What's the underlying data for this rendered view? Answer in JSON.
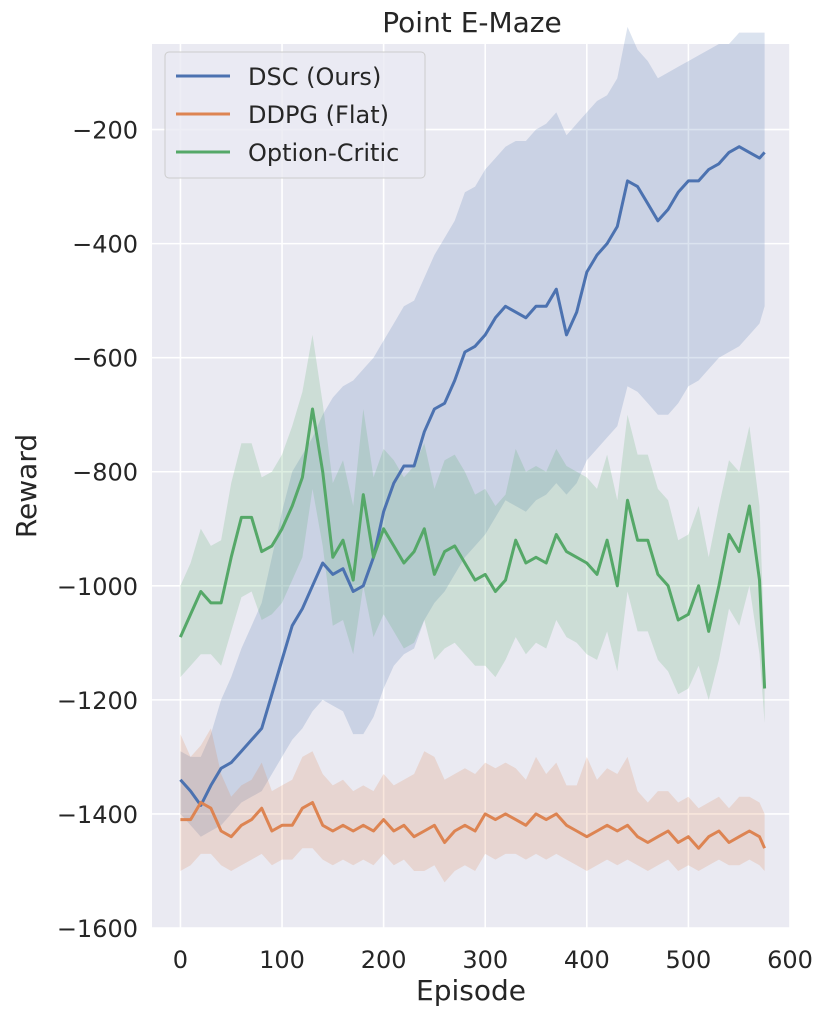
{
  "chart_data": {
    "type": "line",
    "title": "Point E-Maze",
    "xlabel": "Episode",
    "ylabel": "Reward",
    "xlim": [
      -28,
      600
    ],
    "ylim": [
      -1600,
      -50
    ],
    "xticks": [
      0,
      100,
      200,
      300,
      400,
      500,
      600
    ],
    "xtick_labels": [
      "0",
      "100",
      "200",
      "300",
      "400",
      "500",
      "600"
    ],
    "yticks": [
      -1600,
      -1400,
      -1200,
      -1000,
      -800,
      -600,
      -400,
      -200
    ],
    "ytick_labels": [
      "−1600",
      "−1400",
      "−1200",
      "−1000",
      "−800",
      "−600",
      "−400",
      "−200"
    ],
    "grid": true,
    "legend_position": "top-left",
    "background": "#eaeaf2",
    "series": [
      {
        "name": "DSC (Ours)",
        "color": "#4c72b0",
        "x": [
          0,
          10,
          20,
          30,
          40,
          50,
          60,
          70,
          80,
          90,
          100,
          110,
          120,
          130,
          140,
          150,
          160,
          170,
          180,
          190,
          200,
          210,
          220,
          230,
          240,
          250,
          260,
          270,
          280,
          290,
          300,
          310,
          320,
          330,
          340,
          350,
          360,
          370,
          380,
          390,
          400,
          410,
          420,
          430,
          440,
          450,
          460,
          470,
          480,
          490,
          500,
          510,
          520,
          530,
          540,
          550,
          560,
          570,
          575
        ],
        "mean": [
          -1340,
          -1360,
          -1385,
          -1350,
          -1320,
          -1310,
          -1290,
          -1270,
          -1250,
          -1190,
          -1130,
          -1070,
          -1040,
          -1000,
          -960,
          -980,
          -970,
          -1010,
          -1000,
          -950,
          -870,
          -820,
          -790,
          -790,
          -730,
          -690,
          -680,
          -640,
          -590,
          -580,
          -560,
          -530,
          -510,
          -520,
          -530,
          -510,
          -510,
          -480,
          -560,
          -520,
          -450,
          -420,
          -400,
          -370,
          -290,
          -300,
          -330,
          -360,
          -340,
          -310,
          -290,
          -290,
          -270,
          -260,
          -240,
          -230,
          -240,
          -250,
          -240
        ],
        "lower": [
          -1400,
          -1420,
          -1440,
          -1430,
          -1420,
          -1400,
          -1380,
          -1370,
          -1360,
          -1330,
          -1300,
          -1270,
          -1250,
          -1220,
          -1200,
          -1210,
          -1220,
          -1260,
          -1260,
          -1230,
          -1180,
          -1140,
          -1120,
          -1110,
          -1060,
          -1030,
          -1010,
          -980,
          -950,
          -930,
          -910,
          -880,
          -850,
          -860,
          -870,
          -850,
          -840,
          -820,
          -840,
          -820,
          -780,
          -760,
          -740,
          -720,
          -650,
          -660,
          -680,
          -700,
          -700,
          -680,
          -650,
          -640,
          -620,
          -600,
          -590,
          -580,
          -560,
          -540,
          -510
        ],
        "upper": [
          -1290,
          -1300,
          -1300,
          -1260,
          -1200,
          -1160,
          -1110,
          -1070,
          -1030,
          -950,
          -870,
          -800,
          -770,
          -740,
          -700,
          -670,
          -650,
          -640,
          -620,
          -600,
          -570,
          -540,
          -510,
          -500,
          -460,
          -420,
          -390,
          -360,
          -310,
          -300,
          -270,
          -250,
          -230,
          -220,
          -220,
          -200,
          -190,
          -170,
          -210,
          -190,
          -170,
          -150,
          -140,
          -110,
          -20,
          -60,
          -80,
          -110,
          -100,
          -90,
          -80,
          -70,
          -60,
          -50,
          -50,
          -30,
          -30,
          -30,
          -30
        ]
      },
      {
        "name": "DDPG (Flat)",
        "color": "#dd8452",
        "x": [
          0,
          10,
          20,
          30,
          40,
          50,
          60,
          70,
          80,
          90,
          100,
          110,
          120,
          130,
          140,
          150,
          160,
          170,
          180,
          190,
          200,
          210,
          220,
          230,
          240,
          250,
          260,
          270,
          280,
          290,
          300,
          310,
          320,
          330,
          340,
          350,
          360,
          370,
          380,
          390,
          400,
          410,
          420,
          430,
          440,
          450,
          460,
          470,
          480,
          490,
          500,
          510,
          520,
          530,
          540,
          550,
          560,
          570,
          575
        ],
        "mean": [
          -1410,
          -1410,
          -1380,
          -1390,
          -1430,
          -1440,
          -1420,
          -1410,
          -1390,
          -1430,
          -1420,
          -1420,
          -1390,
          -1380,
          -1420,
          -1430,
          -1420,
          -1430,
          -1420,
          -1430,
          -1410,
          -1430,
          -1420,
          -1440,
          -1430,
          -1420,
          -1450,
          -1430,
          -1420,
          -1430,
          -1400,
          -1410,
          -1400,
          -1410,
          -1420,
          -1400,
          -1410,
          -1400,
          -1420,
          -1430,
          -1440,
          -1430,
          -1420,
          -1430,
          -1420,
          -1440,
          -1450,
          -1440,
          -1430,
          -1450,
          -1440,
          -1460,
          -1440,
          -1430,
          -1450,
          -1440,
          -1430,
          -1440,
          -1460
        ],
        "lower": [
          -1500,
          -1490,
          -1470,
          -1470,
          -1490,
          -1500,
          -1490,
          -1480,
          -1470,
          -1490,
          -1480,
          -1480,
          -1460,
          -1460,
          -1480,
          -1490,
          -1480,
          -1490,
          -1480,
          -1490,
          -1470,
          -1490,
          -1480,
          -1500,
          -1500,
          -1490,
          -1520,
          -1500,
          -1490,
          -1500,
          -1470,
          -1480,
          -1470,
          -1470,
          -1480,
          -1470,
          -1480,
          -1470,
          -1480,
          -1490,
          -1500,
          -1490,
          -1480,
          -1490,
          -1480,
          -1490,
          -1500,
          -1490,
          -1480,
          -1500,
          -1490,
          -1500,
          -1490,
          -1480,
          -1490,
          -1490,
          -1480,
          -1490,
          -1500
        ],
        "upper": [
          -1260,
          -1300,
          -1280,
          -1250,
          -1330,
          -1370,
          -1350,
          -1340,
          -1310,
          -1360,
          -1350,
          -1340,
          -1300,
          -1290,
          -1330,
          -1350,
          -1340,
          -1360,
          -1350,
          -1360,
          -1330,
          -1350,
          -1340,
          -1330,
          -1290,
          -1300,
          -1340,
          -1330,
          -1320,
          -1330,
          -1310,
          -1320,
          -1310,
          -1320,
          -1340,
          -1300,
          -1330,
          -1310,
          -1350,
          -1350,
          -1300,
          -1340,
          -1320,
          -1330,
          -1300,
          -1360,
          -1380,
          -1360,
          -1360,
          -1380,
          -1370,
          -1390,
          -1380,
          -1370,
          -1390,
          -1370,
          -1370,
          -1380,
          -1400
        ]
      },
      {
        "name": "Option-Critic",
        "color": "#55a868",
        "x": [
          0,
          10,
          20,
          30,
          40,
          50,
          60,
          70,
          80,
          90,
          100,
          110,
          120,
          130,
          140,
          150,
          160,
          170,
          180,
          190,
          200,
          210,
          220,
          230,
          240,
          250,
          260,
          270,
          280,
          290,
          300,
          310,
          320,
          330,
          340,
          350,
          360,
          370,
          380,
          390,
          400,
          410,
          420,
          430,
          440,
          450,
          460,
          470,
          480,
          490,
          500,
          510,
          520,
          530,
          540,
          550,
          560,
          570,
          575
        ],
        "mean": [
          -1090,
          -1050,
          -1010,
          -1030,
          -1030,
          -950,
          -880,
          -880,
          -940,
          -930,
          -900,
          -860,
          -810,
          -690,
          -800,
          -950,
          -920,
          -990,
          -840,
          -950,
          -900,
          -930,
          -960,
          -940,
          -900,
          -980,
          -940,
          -930,
          -960,
          -990,
          -980,
          -1010,
          -990,
          -920,
          -960,
          -950,
          -960,
          -910,
          -940,
          -950,
          -960,
          -980,
          -920,
          -1000,
          -850,
          -920,
          -920,
          -980,
          -1000,
          -1060,
          -1050,
          -1000,
          -1080,
          -1000,
          -910,
          -940,
          -860,
          -990,
          -1180
        ],
        "lower": [
          -1160,
          -1140,
          -1120,
          -1120,
          -1140,
          -1080,
          -1020,
          -1010,
          -1060,
          -1050,
          -1030,
          -990,
          -950,
          -830,
          -930,
          -1070,
          -1060,
          -1120,
          -1000,
          -1090,
          -1050,
          -1080,
          -1110,
          -1100,
          -1060,
          -1130,
          -1110,
          -1100,
          -1120,
          -1140,
          -1140,
          -1160,
          -1130,
          -1090,
          -1120,
          -1100,
          -1110,
          -1060,
          -1090,
          -1100,
          -1120,
          -1130,
          -1080,
          -1150,
          -1010,
          -1080,
          -1080,
          -1130,
          -1150,
          -1190,
          -1180,
          -1140,
          -1200,
          -1130,
          -1040,
          -1070,
          -1000,
          -1120,
          -1240
        ],
        "upper": [
          -1000,
          -960,
          -900,
          -930,
          -920,
          -820,
          -750,
          -750,
          -810,
          -800,
          -770,
          -720,
          -660,
          -560,
          -680,
          -820,
          -780,
          -860,
          -690,
          -810,
          -760,
          -780,
          -810,
          -790,
          -750,
          -830,
          -780,
          -770,
          -800,
          -840,
          -830,
          -860,
          -840,
          -760,
          -800,
          -790,
          -800,
          -760,
          -790,
          -800,
          -810,
          -830,
          -770,
          -850,
          -700,
          -770,
          -770,
          -830,
          -850,
          -920,
          -910,
          -860,
          -950,
          -860,
          -780,
          -800,
          -720,
          -860,
          -1110
        ]
      }
    ]
  }
}
